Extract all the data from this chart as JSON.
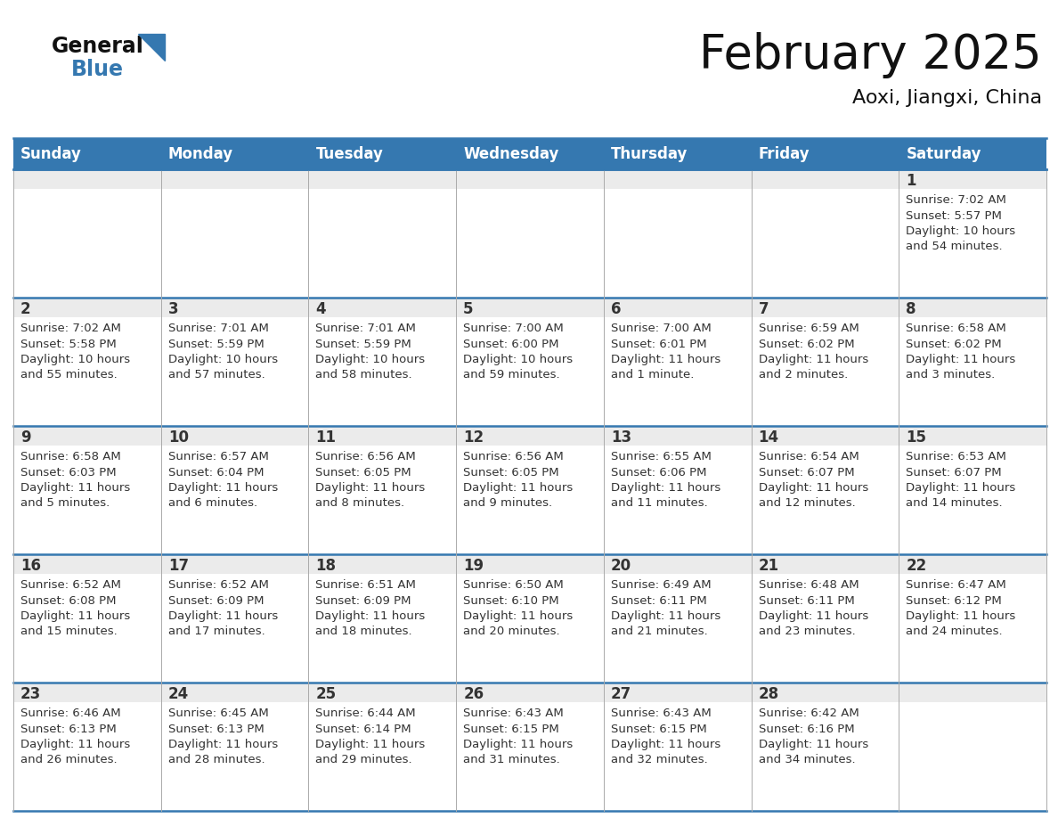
{
  "title": "February 2025",
  "subtitle": "Aoxi, Jiangxi, China",
  "header_color": "#3578b0",
  "header_text_color": "#ffffff",
  "day_names": [
    "Sunday",
    "Monday",
    "Tuesday",
    "Wednesday",
    "Thursday",
    "Friday",
    "Saturday"
  ],
  "bg_color": "#ffffff",
  "cell_top_bg": "#ebebeb",
  "cell_body_bg": "#ffffff",
  "day_num_color": "#333333",
  "text_color": "#333333",
  "logo_general_color": "#111111",
  "logo_blue_color": "#3578b0",
  "grid_color": "#3578b0",
  "days": [
    {
      "date": 1,
      "row": 0,
      "col": 6,
      "sunrise": "7:02 AM",
      "sunset": "5:57 PM",
      "daylight_hours": "10",
      "daylight_mins": "54 minutes."
    },
    {
      "date": 2,
      "row": 1,
      "col": 0,
      "sunrise": "7:02 AM",
      "sunset": "5:58 PM",
      "daylight_hours": "10",
      "daylight_mins": "55 minutes."
    },
    {
      "date": 3,
      "row": 1,
      "col": 1,
      "sunrise": "7:01 AM",
      "sunset": "5:59 PM",
      "daylight_hours": "10",
      "daylight_mins": "57 minutes."
    },
    {
      "date": 4,
      "row": 1,
      "col": 2,
      "sunrise": "7:01 AM",
      "sunset": "5:59 PM",
      "daylight_hours": "10",
      "daylight_mins": "58 minutes."
    },
    {
      "date": 5,
      "row": 1,
      "col": 3,
      "sunrise": "7:00 AM",
      "sunset": "6:00 PM",
      "daylight_hours": "10",
      "daylight_mins": "59 minutes."
    },
    {
      "date": 6,
      "row": 1,
      "col": 4,
      "sunrise": "7:00 AM",
      "sunset": "6:01 PM",
      "daylight_hours": "11",
      "daylight_mins": "1 minute."
    },
    {
      "date": 7,
      "row": 1,
      "col": 5,
      "sunrise": "6:59 AM",
      "sunset": "6:02 PM",
      "daylight_hours": "11",
      "daylight_mins": "2 minutes."
    },
    {
      "date": 8,
      "row": 1,
      "col": 6,
      "sunrise": "6:58 AM",
      "sunset": "6:02 PM",
      "daylight_hours": "11",
      "daylight_mins": "3 minutes."
    },
    {
      "date": 9,
      "row": 2,
      "col": 0,
      "sunrise": "6:58 AM",
      "sunset": "6:03 PM",
      "daylight_hours": "11",
      "daylight_mins": "5 minutes."
    },
    {
      "date": 10,
      "row": 2,
      "col": 1,
      "sunrise": "6:57 AM",
      "sunset": "6:04 PM",
      "daylight_hours": "11",
      "daylight_mins": "6 minutes."
    },
    {
      "date": 11,
      "row": 2,
      "col": 2,
      "sunrise": "6:56 AM",
      "sunset": "6:05 PM",
      "daylight_hours": "11",
      "daylight_mins": "8 minutes."
    },
    {
      "date": 12,
      "row": 2,
      "col": 3,
      "sunrise": "6:56 AM",
      "sunset": "6:05 PM",
      "daylight_hours": "11",
      "daylight_mins": "9 minutes."
    },
    {
      "date": 13,
      "row": 2,
      "col": 4,
      "sunrise": "6:55 AM",
      "sunset": "6:06 PM",
      "daylight_hours": "11",
      "daylight_mins": "11 minutes."
    },
    {
      "date": 14,
      "row": 2,
      "col": 5,
      "sunrise": "6:54 AM",
      "sunset": "6:07 PM",
      "daylight_hours": "11",
      "daylight_mins": "12 minutes."
    },
    {
      "date": 15,
      "row": 2,
      "col": 6,
      "sunrise": "6:53 AM",
      "sunset": "6:07 PM",
      "daylight_hours": "11",
      "daylight_mins": "14 minutes."
    },
    {
      "date": 16,
      "row": 3,
      "col": 0,
      "sunrise": "6:52 AM",
      "sunset": "6:08 PM",
      "daylight_hours": "11",
      "daylight_mins": "15 minutes."
    },
    {
      "date": 17,
      "row": 3,
      "col": 1,
      "sunrise": "6:52 AM",
      "sunset": "6:09 PM",
      "daylight_hours": "11",
      "daylight_mins": "17 minutes."
    },
    {
      "date": 18,
      "row": 3,
      "col": 2,
      "sunrise": "6:51 AM",
      "sunset": "6:09 PM",
      "daylight_hours": "11",
      "daylight_mins": "18 minutes."
    },
    {
      "date": 19,
      "row": 3,
      "col": 3,
      "sunrise": "6:50 AM",
      "sunset": "6:10 PM",
      "daylight_hours": "11",
      "daylight_mins": "20 minutes."
    },
    {
      "date": 20,
      "row": 3,
      "col": 4,
      "sunrise": "6:49 AM",
      "sunset": "6:11 PM",
      "daylight_hours": "11",
      "daylight_mins": "21 minutes."
    },
    {
      "date": 21,
      "row": 3,
      "col": 5,
      "sunrise": "6:48 AM",
      "sunset": "6:11 PM",
      "daylight_hours": "11",
      "daylight_mins": "23 minutes."
    },
    {
      "date": 22,
      "row": 3,
      "col": 6,
      "sunrise": "6:47 AM",
      "sunset": "6:12 PM",
      "daylight_hours": "11",
      "daylight_mins": "24 minutes."
    },
    {
      "date": 23,
      "row": 4,
      "col": 0,
      "sunrise": "6:46 AM",
      "sunset": "6:13 PM",
      "daylight_hours": "11",
      "daylight_mins": "26 minutes."
    },
    {
      "date": 24,
      "row": 4,
      "col": 1,
      "sunrise": "6:45 AM",
      "sunset": "6:13 PM",
      "daylight_hours": "11",
      "daylight_mins": "28 minutes."
    },
    {
      "date": 25,
      "row": 4,
      "col": 2,
      "sunrise": "6:44 AM",
      "sunset": "6:14 PM",
      "daylight_hours": "11",
      "daylight_mins": "29 minutes."
    },
    {
      "date": 26,
      "row": 4,
      "col": 3,
      "sunrise": "6:43 AM",
      "sunset": "6:15 PM",
      "daylight_hours": "11",
      "daylight_mins": "31 minutes."
    },
    {
      "date": 27,
      "row": 4,
      "col": 4,
      "sunrise": "6:43 AM",
      "sunset": "6:15 PM",
      "daylight_hours": "11",
      "daylight_mins": "32 minutes."
    },
    {
      "date": 28,
      "row": 4,
      "col": 5,
      "sunrise": "6:42 AM",
      "sunset": "6:16 PM",
      "daylight_hours": "11",
      "daylight_mins": "34 minutes."
    }
  ],
  "num_rows": 5,
  "num_cols": 7
}
